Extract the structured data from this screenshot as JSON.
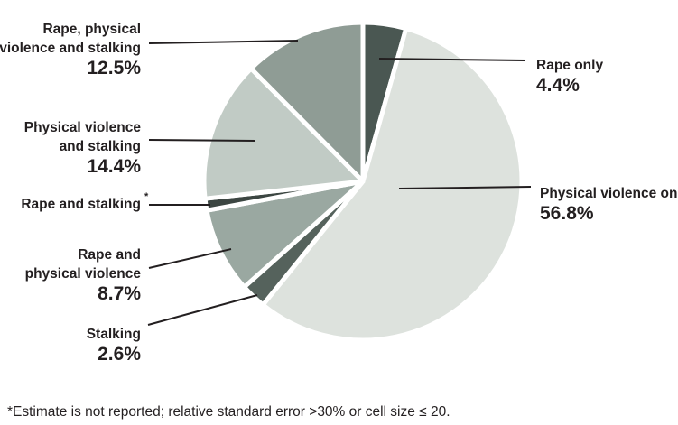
{
  "chart_data": {
    "type": "pie",
    "title": "",
    "slices": [
      {
        "key": "rape-only",
        "lines": [
          "Rape only"
        ],
        "value": 4.4,
        "display": "4.4%",
        "color": "#4a5752"
      },
      {
        "key": "physical-violence-only",
        "lines": [
          "Physical violence only"
        ],
        "value": 56.8,
        "display": "56.8%",
        "color": "#dde2dd"
      },
      {
        "key": "stalking",
        "lines": [
          "Stalking"
        ],
        "value": 2.6,
        "display": "2.6%",
        "color": "#55625c"
      },
      {
        "key": "rape-and-physical-violence",
        "lines": [
          "Rape and",
          "physical violence"
        ],
        "value": 8.7,
        "display": "8.7%",
        "color": "#9aa8a1"
      },
      {
        "key": "rape-and-stalking",
        "lines": [
          "Rape and stalking"
        ],
        "value": 1.2,
        "display": "",
        "marker": "*",
        "color": "#3c4642"
      },
      {
        "key": "physical-violence-and-stalking",
        "lines": [
          "Physical violence",
          "and stalking"
        ],
        "value": 14.4,
        "display": "14.4%",
        "color": "#c1cbc5"
      },
      {
        "key": "rape-physical-violence-and-stalking",
        "lines": [
          "Rape, physical",
          "violence and stalking"
        ],
        "value": 12.5,
        "display": "12.5%",
        "color": "#8f9c95"
      }
    ]
  },
  "footnote": "*Estimate is not reported; relative standard error >30% or cell size ≤ 20."
}
